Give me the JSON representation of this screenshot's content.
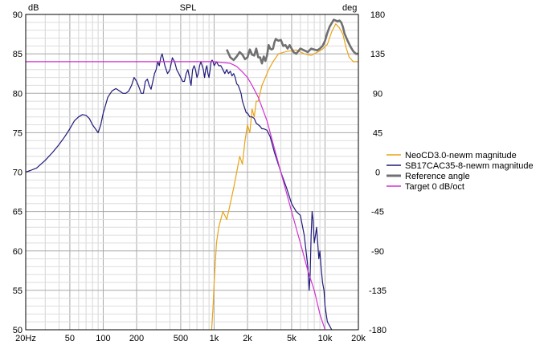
{
  "chart_data": {
    "type": "line",
    "title": "SPL",
    "xscale": "log",
    "xlim": [
      20,
      20000
    ],
    "ylim_left": [
      50,
      90
    ],
    "ylim_right": [
      -180,
      180
    ],
    "ylabel_left": "dB",
    "ylabel_right": "deg",
    "grid": true,
    "legend_position": "right",
    "x_ticks": [
      {
        "value": 20,
        "label": "20Hz"
      },
      {
        "value": 50,
        "label": "50"
      },
      {
        "value": 100,
        "label": "100"
      },
      {
        "value": 200,
        "label": "200"
      },
      {
        "value": 500,
        "label": "500"
      },
      {
        "value": 1000,
        "label": "1k"
      },
      {
        "value": 2000,
        "label": "2k"
      },
      {
        "value": 5000,
        "label": "5k"
      },
      {
        "value": 10000,
        "label": "10k"
      },
      {
        "value": 20000,
        "label": "20k"
      }
    ],
    "y_ticks_left": [
      90,
      85,
      80,
      75,
      70,
      65,
      60,
      55,
      50
    ],
    "y_ticks_right": [
      180,
      135,
      90,
      45,
      0,
      -45,
      -90,
      -135,
      -180
    ],
    "series": [
      {
        "name": "NeoCD3.0-newm magnitude",
        "color": "#e8a317",
        "axis": "left",
        "points": [
          [
            950,
            50
          ],
          [
            980,
            53
          ],
          [
            1000,
            56
          ],
          [
            1050,
            61
          ],
          [
            1100,
            63
          ],
          [
            1200,
            65
          ],
          [
            1300,
            64
          ],
          [
            1400,
            66
          ],
          [
            1500,
            68
          ],
          [
            1600,
            70
          ],
          [
            1700,
            72
          ],
          [
            1800,
            71
          ],
          [
            1900,
            74
          ],
          [
            2000,
            76
          ],
          [
            2100,
            75
          ],
          [
            2200,
            78
          ],
          [
            2300,
            77
          ],
          [
            2400,
            79
          ],
          [
            2500,
            79
          ],
          [
            2700,
            81
          ],
          [
            2900,
            82
          ],
          [
            3100,
            83
          ],
          [
            3400,
            84
          ],
          [
            3800,
            85
          ],
          [
            4500,
            85.3
          ],
          [
            5500,
            85.5
          ],
          [
            6500,
            85
          ],
          [
            7500,
            84.8
          ],
          [
            8500,
            85.2
          ],
          [
            9500,
            85.6
          ],
          [
            10500,
            86.2
          ],
          [
            11500,
            87.8
          ],
          [
            12500,
            88.8
          ],
          [
            13500,
            88.3
          ],
          [
            14500,
            87.5
          ],
          [
            15500,
            85.8
          ],
          [
            16500,
            84.6
          ],
          [
            18000,
            84
          ],
          [
            20000,
            84
          ]
        ]
      },
      {
        "name": "SB17CAC35-8-newm magnitude",
        "color": "#1f1a7a",
        "axis": "left",
        "points": [
          [
            20,
            70
          ],
          [
            22,
            70.2
          ],
          [
            25,
            70.5
          ],
          [
            30,
            71.5
          ],
          [
            35,
            72.5
          ],
          [
            40,
            73.5
          ],
          [
            45,
            74.5
          ],
          [
            50,
            75.5
          ],
          [
            55,
            76.5
          ],
          [
            60,
            77
          ],
          [
            65,
            77.3
          ],
          [
            70,
            77.2
          ],
          [
            75,
            76.8
          ],
          [
            80,
            76
          ],
          [
            85,
            75.5
          ],
          [
            90,
            75
          ],
          [
            95,
            76
          ],
          [
            100,
            77.5
          ],
          [
            110,
            79.5
          ],
          [
            120,
            80.3
          ],
          [
            130,
            80.6
          ],
          [
            140,
            80.3
          ],
          [
            150,
            80
          ],
          [
            160,
            80
          ],
          [
            170,
            80.3
          ],
          [
            180,
            81
          ],
          [
            190,
            82
          ],
          [
            200,
            81.5
          ],
          [
            210,
            80.8
          ],
          [
            220,
            80
          ],
          [
            230,
            80
          ],
          [
            240,
            81.5
          ],
          [
            250,
            81.8
          ],
          [
            260,
            81
          ],
          [
            270,
            80.5
          ],
          [
            280,
            81.5
          ],
          [
            290,
            82.5
          ],
          [
            300,
            83
          ],
          [
            310,
            84
          ],
          [
            320,
            83.5
          ],
          [
            330,
            84.5
          ],
          [
            340,
            85
          ],
          [
            360,
            83.5
          ],
          [
            380,
            82.5
          ],
          [
            400,
            83
          ],
          [
            420,
            84.5
          ],
          [
            440,
            84
          ],
          [
            460,
            83
          ],
          [
            480,
            82.5
          ],
          [
            500,
            82
          ],
          [
            520,
            81.5
          ],
          [
            540,
            81.5
          ],
          [
            560,
            82.5
          ],
          [
            580,
            83
          ],
          [
            600,
            82
          ],
          [
            620,
            81
          ],
          [
            640,
            83
          ],
          [
            660,
            83.5
          ],
          [
            680,
            83
          ],
          [
            700,
            82
          ],
          [
            720,
            82.5
          ],
          [
            740,
            83.5
          ],
          [
            760,
            84
          ],
          [
            780,
            83.5
          ],
          [
            800,
            83
          ],
          [
            820,
            82
          ],
          [
            840,
            83
          ],
          [
            860,
            83.5
          ],
          [
            880,
            82.5
          ],
          [
            900,
            82
          ],
          [
            920,
            83
          ],
          [
            940,
            84
          ],
          [
            960,
            84.2
          ],
          [
            980,
            84
          ],
          [
            1000,
            83.5
          ],
          [
            1050,
            84
          ],
          [
            1100,
            83.5
          ],
          [
            1150,
            83.5
          ],
          [
            1200,
            83
          ],
          [
            1250,
            82.5
          ],
          [
            1300,
            83
          ],
          [
            1350,
            82.5
          ],
          [
            1400,
            82.8
          ],
          [
            1450,
            82.2
          ],
          [
            1500,
            82.5
          ],
          [
            1550,
            82
          ],
          [
            1600,
            81.2
          ],
          [
            1650,
            81
          ],
          [
            1700,
            80.5
          ],
          [
            1750,
            80
          ],
          [
            1800,
            79
          ],
          [
            1850,
            78.5
          ],
          [
            1900,
            78
          ],
          [
            1950,
            77.5
          ],
          [
            2000,
            77.5
          ],
          [
            2100,
            77
          ],
          [
            2200,
            77
          ],
          [
            2300,
            76.8
          ],
          [
            2400,
            76.2
          ],
          [
            2500,
            76
          ],
          [
            2600,
            75.8
          ],
          [
            2700,
            75.5
          ],
          [
            2800,
            75.5
          ],
          [
            2900,
            75.4
          ],
          [
            3000,
            75.3
          ],
          [
            3200,
            74.5
          ],
          [
            3500,
            72.5
          ],
          [
            4000,
            70
          ],
          [
            4500,
            68
          ],
          [
            5000,
            66
          ],
          [
            5500,
            65
          ],
          [
            6000,
            64.5
          ],
          [
            6500,
            62
          ],
          [
            7000,
            58
          ],
          [
            7200,
            55
          ],
          [
            7350,
            57
          ],
          [
            7500,
            62
          ],
          [
            7650,
            65
          ],
          [
            7800,
            64
          ],
          [
            8000,
            61
          ],
          [
            8200,
            62
          ],
          [
            8400,
            63
          ],
          [
            8600,
            61
          ],
          [
            8800,
            59
          ],
          [
            9000,
            60
          ],
          [
            9200,
            58
          ],
          [
            9500,
            56
          ],
          [
            9800,
            55
          ],
          [
            10000,
            53
          ],
          [
            10500,
            51
          ],
          [
            11000,
            50.5
          ],
          [
            11500,
            50
          ]
        ]
      },
      {
        "name": "Reference angle",
        "color": "#707070",
        "axis": "right",
        "points": [
          [
            1300,
            140
          ],
          [
            1400,
            131
          ],
          [
            1500,
            128
          ],
          [
            1600,
            132
          ],
          [
            1700,
            137
          ],
          [
            1800,
            134
          ],
          [
            1900,
            129
          ],
          [
            2000,
            131
          ],
          [
            2100,
            140
          ],
          [
            2200,
            134
          ],
          [
            2300,
            133
          ],
          [
            2400,
            141
          ],
          [
            2500,
            131
          ],
          [
            2600,
            131
          ],
          [
            2700,
            124
          ],
          [
            2800,
            132
          ],
          [
            2900,
            127
          ],
          [
            3000,
            133
          ],
          [
            3100,
            145
          ],
          [
            3200,
            141
          ],
          [
            3300,
            140
          ],
          [
            3400,
            141
          ],
          [
            3500,
            148
          ],
          [
            3600,
            152
          ],
          [
            3800,
            150
          ],
          [
            4000,
            151
          ],
          [
            4200,
            144
          ],
          [
            4400,
            145
          ],
          [
            4600,
            141
          ],
          [
            4800,
            145
          ],
          [
            5000,
            141
          ],
          [
            5200,
            137
          ],
          [
            5500,
            135
          ],
          [
            6000,
            141
          ],
          [
            6500,
            139
          ],
          [
            7000,
            137
          ],
          [
            7500,
            141
          ],
          [
            8000,
            140
          ],
          [
            8500,
            139
          ],
          [
            9000,
            141
          ],
          [
            9500,
            144
          ],
          [
            10000,
            150
          ],
          [
            10500,
            159
          ],
          [
            11000,
            166
          ],
          [
            11500,
            170
          ],
          [
            12000,
            174
          ],
          [
            12500,
            173
          ],
          [
            13000,
            172
          ],
          [
            13500,
            173
          ],
          [
            14000,
            171
          ],
          [
            14500,
            166
          ],
          [
            15000,
            158
          ],
          [
            16000,
            150
          ],
          [
            17000,
            143
          ],
          [
            18000,
            138
          ],
          [
            19000,
            135
          ],
          [
            20000,
            135
          ]
        ]
      },
      {
        "name": "Target 0 dB/oct",
        "color": "#d230d2",
        "axis": "left",
        "points": [
          [
            20,
            84
          ],
          [
            100,
            84
          ],
          [
            500,
            84
          ],
          [
            1000,
            84
          ],
          [
            1200,
            83.9
          ],
          [
            1400,
            83.8
          ],
          [
            1600,
            83.4
          ],
          [
            1800,
            82.7
          ],
          [
            2000,
            82
          ],
          [
            2200,
            81
          ],
          [
            2500,
            79.5
          ],
          [
            3000,
            76.5
          ],
          [
            3500,
            73
          ],
          [
            4000,
            70
          ],
          [
            5000,
            65
          ],
          [
            6000,
            61
          ],
          [
            7000,
            57.5
          ],
          [
            8000,
            55
          ],
          [
            9000,
            52
          ],
          [
            10000,
            50
          ]
        ]
      }
    ]
  }
}
